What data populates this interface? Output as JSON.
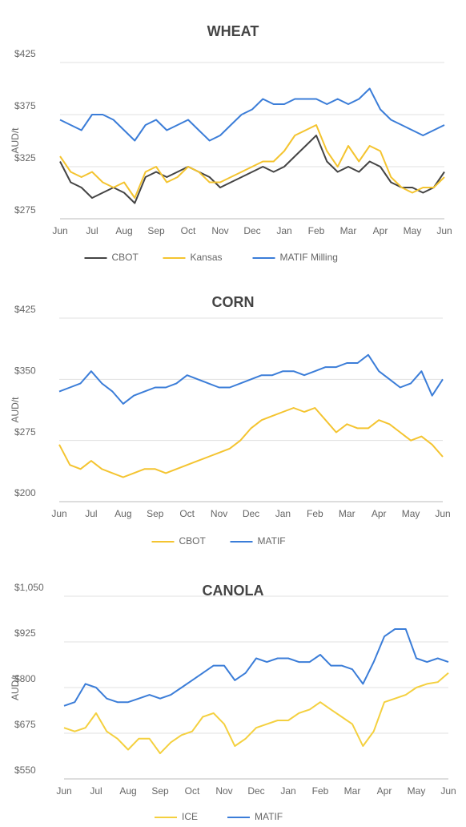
{
  "chart_data": [
    {
      "type": "line",
      "title": "WHEAT",
      "y_label": "AUD/t",
      "categories": [
        "Jun",
        null,
        null,
        "Jul",
        null,
        null,
        "Aug",
        null,
        null,
        "Sep",
        null,
        null,
        "Oct",
        null,
        null,
        "Nov",
        null,
        null,
        "Dec",
        null,
        null,
        "Jan",
        null,
        null,
        "Feb",
        null,
        null,
        "Mar",
        null,
        null,
        "Apr",
        null,
        null,
        "May",
        null,
        null,
        "Jun"
      ],
      "series": [
        {
          "name": "CBOT",
          "color": "#444444",
          "values": [
            330,
            310,
            305,
            295,
            300,
            305,
            300,
            290,
            315,
            320,
            315,
            320,
            325,
            320,
            315,
            305,
            310,
            315,
            320,
            325,
            320,
            325,
            335,
            345,
            355,
            330,
            320,
            325,
            320,
            330,
            325,
            310,
            305,
            305,
            300,
            305,
            320
          ]
        },
        {
          "name": "Kansas",
          "color": "#f4c430",
          "values": [
            335,
            320,
            315,
            320,
            310,
            305,
            310,
            295,
            320,
            325,
            310,
            315,
            325,
            320,
            310,
            310,
            315,
            320,
            325,
            330,
            330,
            340,
            355,
            360,
            365,
            340,
            325,
            345,
            330,
            345,
            340,
            315,
            305,
            300,
            305,
            305,
            315
          ]
        },
        {
          "name": "MATIF Milling",
          "color": "#3b7dd8",
          "values": [
            370,
            365,
            360,
            375,
            375,
            370,
            360,
            350,
            365,
            370,
            360,
            365,
            370,
            360,
            350,
            355,
            365,
            375,
            380,
            390,
            385,
            385,
            390,
            390,
            390,
            385,
            390,
            385,
            390,
            400,
            380,
            370,
            365,
            360,
            355,
            360,
            365
          ]
        }
      ],
      "ylim": [
        275,
        425
      ],
      "yticks": [
        {
          "value": 275,
          "label": "$275"
        },
        {
          "value": 325,
          "label": "$325"
        },
        {
          "value": 375,
          "label": "$375"
        },
        {
          "value": 425,
          "label": "$425"
        }
      ],
      "grid": true,
      "legend": "bottom"
    },
    {
      "type": "line",
      "title": "CORN",
      "y_label": "AUD/t",
      "categories": [
        "Jun",
        null,
        null,
        "Jul",
        null,
        null,
        "Aug",
        null,
        null,
        "Sep",
        null,
        null,
        "Oct",
        null,
        null,
        "Nov",
        null,
        null,
        "Dec",
        null,
        null,
        "Jan",
        null,
        null,
        "Feb",
        null,
        null,
        "Mar",
        null,
        null,
        "Apr",
        null,
        null,
        "May",
        null,
        null,
        "Jun"
      ],
      "series": [
        {
          "name": "CBOT",
          "color": "#f4c430",
          "values": [
            270,
            245,
            240,
            250,
            240,
            235,
            230,
            235,
            240,
            240,
            235,
            240,
            245,
            250,
            255,
            260,
            265,
            275,
            290,
            300,
            305,
            310,
            315,
            310,
            315,
            300,
            285,
            295,
            290,
            290,
            300,
            295,
            285,
            275,
            280,
            270,
            255
          ]
        },
        {
          "name": "MATIF",
          "color": "#3b7dd8",
          "values": [
            335,
            340,
            345,
            360,
            345,
            335,
            320,
            330,
            335,
            340,
            340,
            345,
            355,
            350,
            345,
            340,
            340,
            345,
            350,
            355,
            355,
            360,
            360,
            355,
            360,
            365,
            365,
            370,
            370,
            380,
            360,
            350,
            340,
            345,
            360,
            330,
            350
          ]
        }
      ],
      "ylim": [
        200,
        425
      ],
      "yticks": [
        {
          "value": 200,
          "label": "$200"
        },
        {
          "value": 275,
          "label": "$275"
        },
        {
          "value": 350,
          "label": "$350"
        },
        {
          "value": 425,
          "label": "$425"
        }
      ],
      "grid": true,
      "legend": "bottom"
    },
    {
      "type": "line",
      "title": "CANOLA",
      "y_label": "AUD/t",
      "categories": [
        "Jun",
        null,
        null,
        "Jul",
        null,
        null,
        "Aug",
        null,
        null,
        "Sep",
        null,
        null,
        "Oct",
        null,
        null,
        "Nov",
        null,
        null,
        "Dec",
        null,
        null,
        "Jan",
        null,
        null,
        "Feb",
        null,
        null,
        "Mar",
        null,
        null,
        "Apr",
        null,
        null,
        "May",
        null,
        null,
        "Jun"
      ],
      "series": [
        {
          "name": "ICE",
          "color": "#f4d03f",
          "values": [
            690,
            680,
            690,
            730,
            680,
            660,
            630,
            660,
            660,
            620,
            650,
            670,
            680,
            720,
            730,
            700,
            640,
            660,
            690,
            700,
            710,
            710,
            730,
            740,
            760,
            740,
            720,
            700,
            640,
            680,
            760,
            770,
            780,
            800,
            810,
            815,
            840
          ]
        },
        {
          "name": "MATIF",
          "color": "#3b7dd8",
          "values": [
            750,
            760,
            810,
            800,
            770,
            760,
            760,
            770,
            780,
            770,
            780,
            800,
            820,
            840,
            860,
            860,
            820,
            840,
            880,
            870,
            880,
            880,
            870,
            870,
            890,
            860,
            860,
            850,
            810,
            870,
            940,
            960,
            960,
            880,
            870,
            880,
            870
          ]
        }
      ],
      "ylim": [
        550,
        1050
      ],
      "yticks": [
        {
          "value": 550,
          "label": "$550"
        },
        {
          "value": 675,
          "label": "$675"
        },
        {
          "value": 800,
          "label": "$800"
        },
        {
          "value": 925,
          "label": "$925"
        },
        {
          "value": 1050,
          "label": "$1,050"
        }
      ],
      "grid": true,
      "legend": "bottom"
    }
  ]
}
